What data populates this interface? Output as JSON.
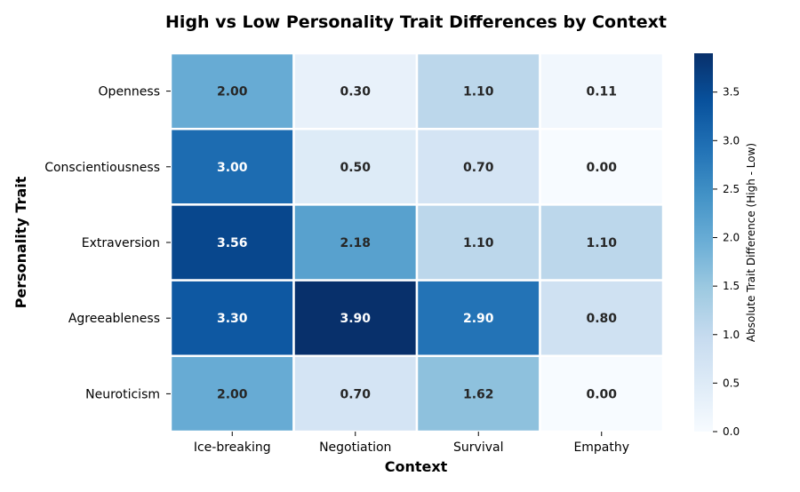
{
  "chart_data": {
    "type": "heatmap",
    "title": "High vs Low Personality Trait Differences by Context",
    "xlabel": "Context",
    "ylabel": "Personality Trait",
    "x_categories": [
      "Ice-breaking",
      "Negotiation",
      "Survival",
      "Empathy"
    ],
    "y_categories": [
      "Openness",
      "Conscientiousness",
      "Extraversion",
      "Agreeableness",
      "Neuroticism"
    ],
    "values": [
      [
        2.0,
        0.3,
        1.1,
        0.11
      ],
      [
        3.0,
        0.5,
        0.7,
        0.0
      ],
      [
        3.56,
        2.18,
        1.1,
        1.1
      ],
      [
        3.3,
        3.9,
        2.9,
        0.8
      ],
      [
        2.0,
        0.7,
        1.62,
        0.0
      ]
    ],
    "value_labels": [
      [
        "2.00",
        "0.30",
        "1.10",
        "0.11"
      ],
      [
        "3.00",
        "0.50",
        "0.70",
        "0.00"
      ],
      [
        "3.56",
        "2.18",
        "1.10",
        "1.10"
      ],
      [
        "3.30",
        "3.90",
        "2.90",
        "0.80"
      ],
      [
        "2.00",
        "0.70",
        "1.62",
        "0.00"
      ]
    ],
    "colorbar": {
      "label": "Absolute Trait Difference (High - Low)",
      "range": [
        0.0,
        3.9
      ],
      "ticks": [
        0.0,
        0.5,
        1.0,
        1.5,
        2.0,
        2.5,
        3.0,
        3.5
      ],
      "tick_labels": [
        "0.0",
        "0.5",
        "1.0",
        "1.5",
        "2.0",
        "2.5",
        "3.0",
        "3.5"
      ],
      "colormap": "Blues",
      "colors": [
        "#f7fbff",
        "#deebf7",
        "#c6dbef",
        "#9ecae1",
        "#6baed6",
        "#4292c6",
        "#2171b5",
        "#08519c",
        "#08306b"
      ]
    },
    "annotation_colors": {
      "dark": "#262626",
      "light": "#ffffff"
    },
    "grid": false
  }
}
